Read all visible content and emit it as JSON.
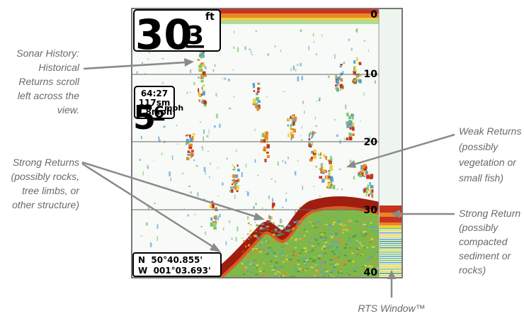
{
  "display": {
    "depth": {
      "whole": "30",
      "tenth": "3",
      "unit": "ft"
    },
    "depth_scale": [
      "0",
      "10",
      "20",
      "30",
      "40"
    ],
    "info_box": [
      "64:27",
      "117sm",
      "1.8mph"
    ],
    "speed": {
      "whole": "5",
      "tenth": "6",
      "unit": "mph"
    },
    "position": [
      "N  50°40.855'",
      "W  001°03.693'"
    ]
  },
  "callouts": [
    {
      "lines": [
        "Sonar History:",
        "Historical",
        "Returns scroll",
        "left across the",
        "view."
      ]
    },
    {
      "lines": [
        "Strong Returns",
        "(possibly rocks,",
        "tree limbs, or",
        "other structure)"
      ]
    },
    {
      "lines": [
        "Weak Returns",
        "(possibly",
        "vegetation or",
        "small fish)"
      ]
    },
    {
      "lines": [
        "Strong Return",
        "(possibly",
        "compacted",
        "sediment or",
        "rocks)"
      ]
    },
    {
      "lines": [
        "RTS Window™"
      ]
    }
  ]
}
